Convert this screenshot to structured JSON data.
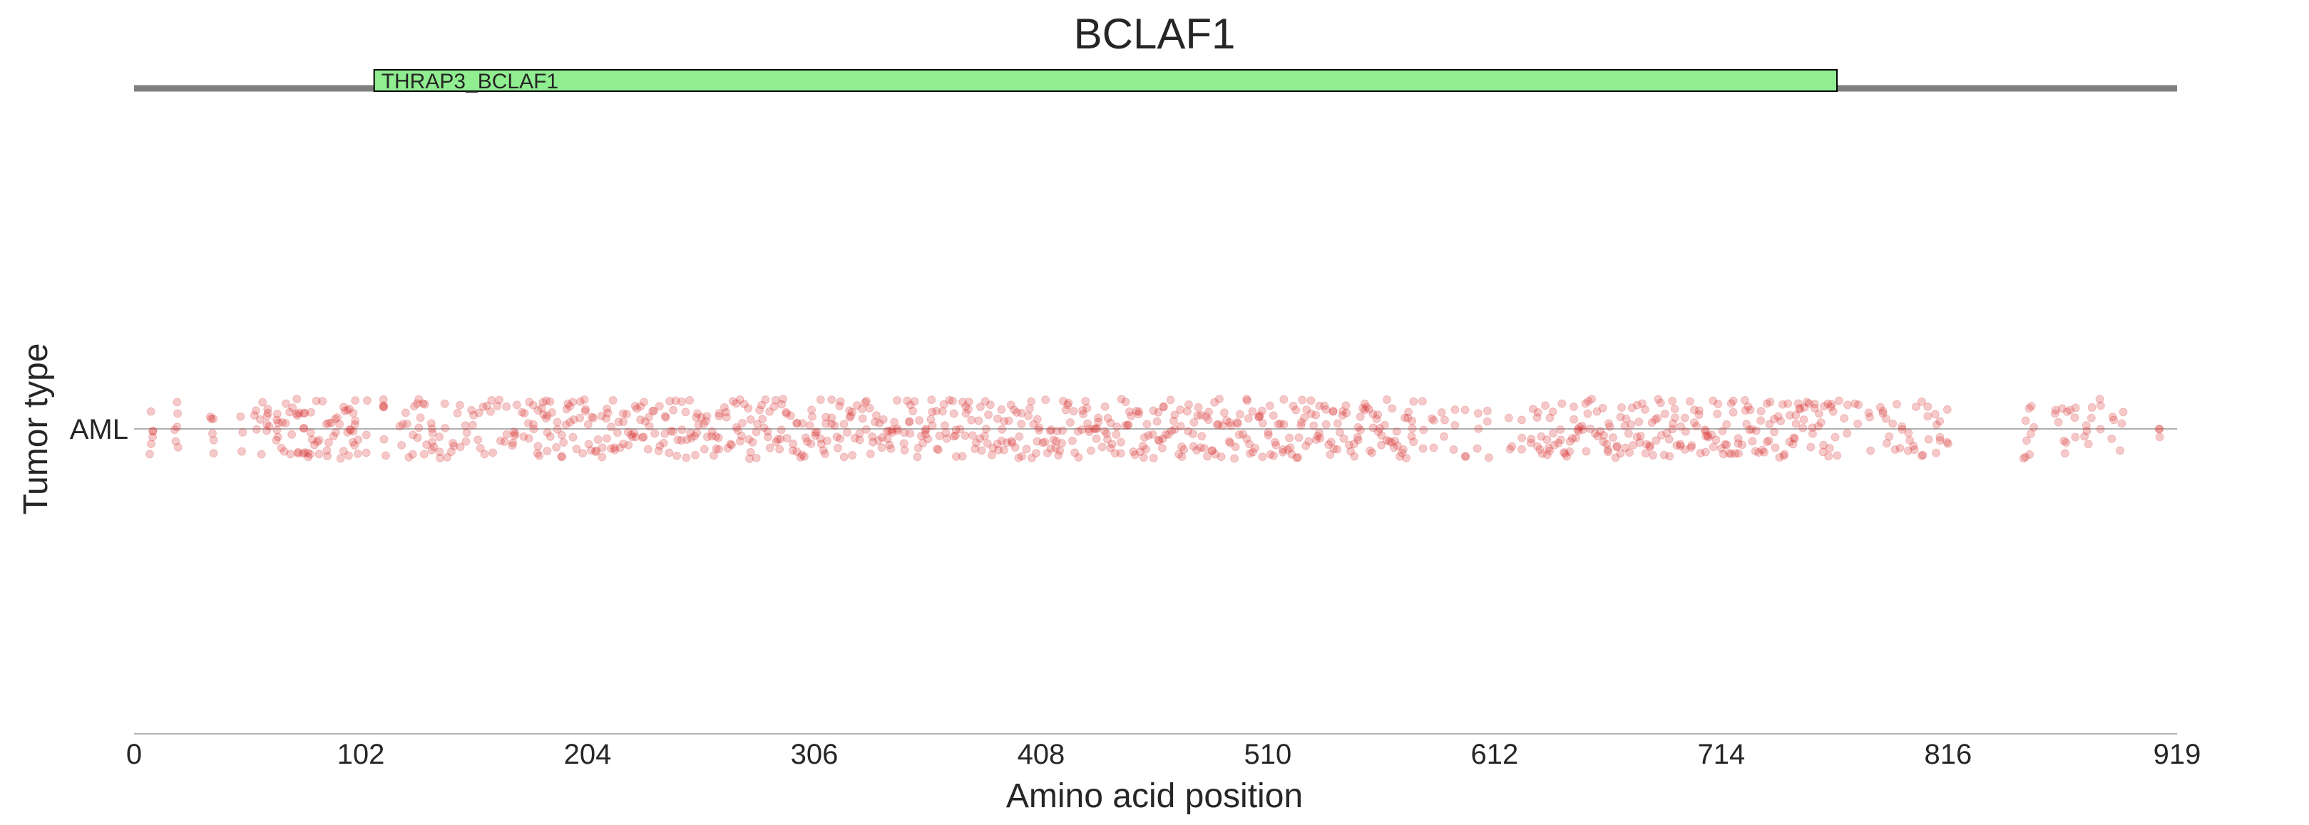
{
  "chart_data": {
    "type": "scatter",
    "title": "BCLAF1",
    "xlabel": "Amino acid position",
    "ylabel": "Tumor type",
    "xlim": [
      0,
      919
    ],
    "xticks": [
      "0",
      "102",
      "204",
      "306",
      "408",
      "510",
      "612",
      "714",
      "816",
      "919"
    ],
    "categories": [
      "AML"
    ],
    "protein_length": 919,
    "domains": [
      {
        "name": "THRAP3_BCLAF1",
        "start": 108,
        "end": 766,
        "color": "#90ee90"
      }
    ],
    "series": [
      {
        "category": "AML",
        "color": "#d62728",
        "opacity": 0.25,
        "positions": [
          8,
          8,
          19,
          19,
          35,
          35,
          48,
          55,
          57,
          60,
          60,
          64,
          64,
          67,
          69,
          71,
          73,
          74,
          76,
          77,
          79,
          80,
          82,
          84,
          86,
          88,
          90,
          92,
          94,
          96,
          97,
          99,
          99,
          100,
          104,
          113,
          113,
          120,
          123,
          126,
          128,
          129,
          131,
          134,
          134,
          137,
          140,
          143,
          146,
          149,
          152,
          155,
          158,
          161,
          164,
          167,
          170,
          172,
          175,
          177,
          179,
          181,
          183,
          185,
          186,
          188,
          190,
          192,
          194,
          196,
          198,
          200,
          202,
          204,
          206,
          208,
          210,
          212,
          214,
          216,
          218,
          220,
          222,
          224,
          226,
          228,
          230,
          232,
          234,
          236,
          238,
          240,
          242,
          244,
          246,
          248,
          250,
          252,
          254,
          256,
          258,
          260,
          262,
          264,
          266,
          268,
          270,
          272,
          274,
          276,
          278,
          280,
          282,
          284,
          286,
          288,
          290,
          292,
          294,
          296,
          298,
          300,
          302,
          304,
          306,
          308,
          310,
          312,
          314,
          316,
          318,
          320,
          322,
          324,
          326,
          328,
          330,
          332,
          334,
          336,
          338,
          340,
          342,
          344,
          346,
          348,
          350,
          352,
          354,
          356,
          358,
          360,
          362,
          364,
          366,
          368,
          370,
          372,
          374,
          376,
          378,
          380,
          382,
          384,
          386,
          388,
          390,
          392,
          394,
          396,
          398,
          400,
          402,
          404,
          406,
          408,
          410,
          412,
          414,
          416,
          418,
          420,
          422,
          424,
          426,
          428,
          430,
          432,
          434,
          436,
          438,
          440,
          442,
          444,
          446,
          448,
          450,
          452,
          454,
          456,
          458,
          460,
          462,
          464,
          466,
          468,
          470,
          472,
          474,
          476,
          478,
          480,
          482,
          484,
          486,
          488,
          490,
          492,
          494,
          496,
          498,
          500,
          502,
          504,
          506,
          508,
          510,
          512,
          514,
          516,
          518,
          520,
          522,
          524,
          526,
          528,
          530,
          532,
          534,
          536,
          538,
          540,
          542,
          544,
          546,
          548,
          550,
          552,
          554,
          556,
          558,
          560,
          562,
          564,
          566,
          568,
          570,
          572,
          574,
          576,
          580,
          584,
          589,
          594,
          599,
          604,
          609,
          619,
          624,
          629,
          631,
          633,
          635,
          637,
          639,
          641,
          643,
          645,
          647,
          649,
          651,
          653,
          655,
          658,
          660,
          662,
          664,
          666,
          668,
          670,
          672,
          674,
          676,
          678,
          680,
          682,
          684,
          686,
          688,
          690,
          692,
          694,
          696,
          698,
          700,
          702,
          704,
          706,
          708,
          710,
          712,
          714,
          716,
          718,
          720,
          722,
          724,
          726,
          728,
          730,
          732,
          734,
          736,
          738,
          740,
          742,
          744,
          746,
          748,
          750,
          752,
          754,
          756,
          758,
          760,
          762,
          764,
          766,
          770,
          775,
          781,
          786,
          789,
          792,
          795,
          798,
          801,
          804,
          807,
          810,
          813,
          816,
          850,
          852,
          854,
          865,
          868,
          870,
          873,
          878,
          880,
          885,
          890,
          894,
          911
        ]
      }
    ]
  }
}
